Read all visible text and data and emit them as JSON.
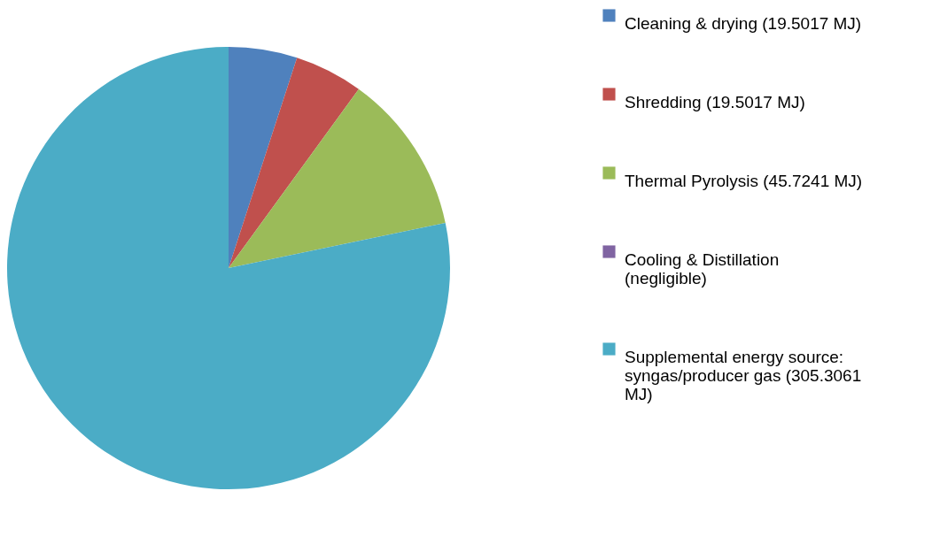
{
  "chart_data": {
    "type": "pie",
    "categories": [
      "Cleaning  & drying (19.5017 MJ)",
      "Shredding (19.5017 MJ)",
      "Thermal Pyrolysis (45.7241 MJ)",
      "Cooling & Distillation (negligible)",
      "Supplemental energy source: syngas/producer gas (305.3061 MJ)"
    ],
    "values": [
      19.5017,
      19.5017,
      45.7241,
      0,
      305.3061
    ],
    "colors": [
      "#4f81bd",
      "#c0504d",
      "#9bbb59",
      "#8064a2",
      "#4bacc6"
    ],
    "legend": "right"
  }
}
